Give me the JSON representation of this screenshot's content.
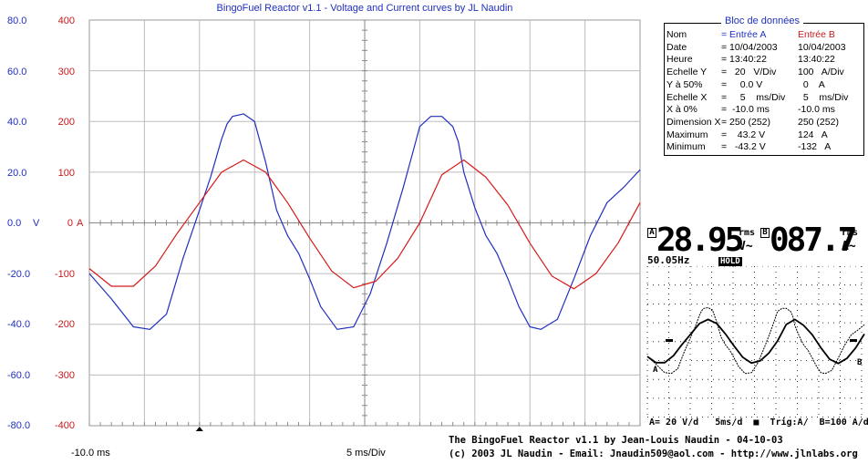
{
  "window": {
    "title": "BingoFuel Reactor v1.1 - Voltage and Current curves by JL Naudin"
  },
  "axes": {
    "a_ticks": [
      "80.0",
      "60.0",
      "40.0",
      "20.0",
      "0.0",
      "-20.0",
      "-40.0",
      "-60.0",
      "-80.0"
    ],
    "b_ticks": [
      "400",
      "300",
      "200",
      "100",
      "0",
      "-100",
      "-200",
      "-300",
      "-400"
    ],
    "a_unit": "V",
    "b_unit": "A",
    "x_start": "-10.0 ms",
    "x_scale": "5 ms/Div"
  },
  "chart_data": {
    "type": "line",
    "title": "BingoFuel Reactor v1.1 - Voltage and Current curves by JL Naudin",
    "x_unit": "ms",
    "xlim": [
      -10,
      40
    ],
    "ylim_A": [
      -80,
      80
    ],
    "ylim_B": [
      -400,
      400
    ],
    "grid": true,
    "series": [
      {
        "name": "Entrée A",
        "unit": "V",
        "axis": "left",
        "x": [
          -10.0,
          -8.0,
          -6.0,
          -4.5,
          -3.0,
          -1.5,
          0.0,
          1.0,
          2.0,
          2.5,
          3.0,
          4.0,
          5.0,
          6.0,
          7.0,
          8.0,
          9.0,
          10.0,
          11.0,
          12.5,
          14.0,
          15.5,
          17.0,
          18.5,
          19.5,
          20.0,
          21.0,
          22.0,
          23.0,
          23.5,
          24.0,
          25.0,
          26.0,
          27.0,
          28.0,
          29.0,
          30.0,
          31.0,
          32.5,
          34.0,
          35.5,
          37.0,
          38.5,
          40.0
        ],
        "values": [
          -20.0,
          -30.0,
          -41.0,
          -42.0,
          -36.0,
          -14.0,
          5.0,
          18.0,
          33.0,
          39.0,
          42.0,
          43.0,
          40.0,
          24.0,
          5.0,
          -5.0,
          -12.0,
          -22.0,
          -33.0,
          -42.0,
          -41.0,
          -28.0,
          -8.0,
          14.0,
          30.0,
          38.0,
          42.0,
          42.0,
          38.0,
          32.0,
          20.0,
          6.0,
          -5.0,
          -12.0,
          -22.0,
          -33.0,
          -41.0,
          -42.0,
          -38.0,
          -22.0,
          -5.0,
          8.0,
          14.0,
          21.0
        ]
      },
      {
        "name": "Entrée B",
        "unit": "A",
        "axis": "right",
        "x": [
          -10.0,
          -8.0,
          -6.0,
          -4.0,
          -2.0,
          0.0,
          2.0,
          4.0,
          6.0,
          8.0,
          10.0,
          12.0,
          14.0,
          16.0,
          18.0,
          20.0,
          22.0,
          24.0,
          26.0,
          28.0,
          30.0,
          32.0,
          34.0,
          36.0,
          38.0,
          40.0
        ],
        "values": [
          -90,
          -125,
          -125,
          -85,
          -20,
          40,
          100,
          124,
          100,
          40,
          -30,
          -95,
          -128,
          -115,
          -70,
          0,
          95,
          124,
          90,
          35,
          -40,
          -105,
          -130,
          -100,
          -40,
          40
        ]
      }
    ]
  },
  "databox": {
    "title": "Bloc de données",
    "rows": [
      {
        "label": "Nom",
        "a": "= Entrée A",
        "b": "Entrée B"
      },
      {
        "label": "Date",
        "a": "= 10/04/2003",
        "b": "10/04/2003"
      },
      {
        "label": "Heure",
        "a": "= 13:40:22",
        "b": "13:40:22"
      },
      {
        "label": "Echelle Y",
        "a": "=   20   V/Div",
        "b": "100   A/Div"
      },
      {
        "label": "Y à 50%",
        "a": "=     0.0 V",
        "b": "  0    A"
      },
      {
        "label": "Echelle X",
        "a": "=     5    ms/Div",
        "b": "  5    ms/Div"
      },
      {
        "label": "X à 0%",
        "a": "=  -10.0 ms",
        "b": "-10.0 ms"
      },
      {
        "label": "Dimension X",
        "a": "= 250 (252)",
        "b": "250 (252)"
      },
      {
        "label": "Maximum",
        "a": "=    43.2 V",
        "b": "124   A"
      },
      {
        "label": "Minimum",
        "a": "=   -43.2 V",
        "b": "-132   A"
      }
    ]
  },
  "scope": {
    "badge_a": "A",
    "value_a": "28.95",
    "rms_a": "rms",
    "unit_a": "V~",
    "badge_b": "B",
    "value_b": "087.7",
    "rms_b": "rms",
    "unit_b": "A~",
    "freq": "50.05Hz",
    "hold": "HOLD",
    "trace_a_label": "A",
    "trace_b_label": "B",
    "bottom": "A= 20 V/d   5ms/d  ■  Trig:A/  B=100 A/d"
  },
  "credits": {
    "line1": "The BingoFuel Reactor v1.1 by Jean-Louis Naudin  - 04-10-03",
    "line2": "(c) 2003 JL Naudin - Email: Jnaudin509@aol.com - http://www.jlnlabs.org"
  },
  "colors": {
    "series_a": "#1f2fbf",
    "series_b": "#d61a1a",
    "grid": "#bdbdbd"
  }
}
